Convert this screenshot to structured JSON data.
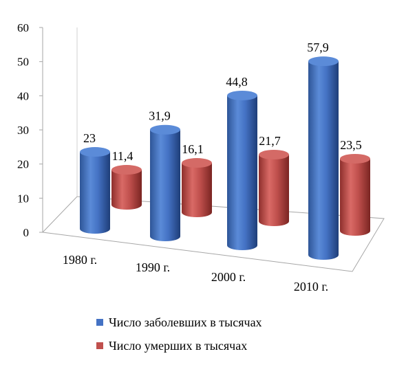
{
  "chart_data": {
    "type": "bar",
    "style": "3d-cylinder",
    "categories": [
      "1980 г.",
      "1990 г.",
      "2000 г.",
      "2010 г."
    ],
    "series": [
      {
        "name": "Число заболевших в тысячах",
        "values": [
          23,
          31.9,
          44.8,
          57.9
        ],
        "value_labels": [
          "23",
          "31,9",
          "44,8",
          "57,9"
        ],
        "color": "#4472C4"
      },
      {
        "name": "Число умерших в тысячах",
        "values": [
          11.4,
          16.1,
          21.7,
          23.5
        ],
        "value_labels": [
          "11,4",
          "16,1",
          "21,7",
          "23,5"
        ],
        "color": "#C0504D"
      }
    ],
    "y_ticks": [
      "0",
      "10",
      "20",
      "30",
      "40",
      "50",
      "60"
    ],
    "ylim": [
      0,
      60
    ],
    "grid": false,
    "legend_position": "bottom"
  }
}
